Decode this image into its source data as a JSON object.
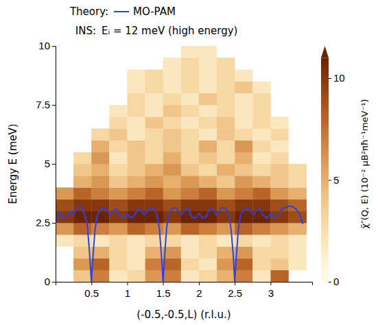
{
  "chart_data": {
    "type": "heatmap",
    "annotations": [
      "Theory:",
      "INS:",
      "Eᵢ = 12 meV (high energy)"
    ],
    "x_label": "(-0.5,-0.5,L) (r.l.u.)",
    "y_label": "Energy E (meV)",
    "xlim": [
      0,
      3.58
    ],
    "xticks": [
      0.5,
      1,
      1.5,
      2,
      2.5,
      3
    ],
    "ylim": [
      0,
      10
    ],
    "yticks": [
      0,
      2.5,
      5,
      7.5,
      10
    ],
    "legend": "top",
    "x_bins": [
      0,
      0.25,
      0.5,
      0.75,
      1,
      1.25,
      1.5,
      1.75,
      2,
      2.25,
      2.5,
      2.75,
      3,
      3.25,
      3.5
    ],
    "y_bins": [
      0,
      0.5,
      1,
      1.5,
      2,
      2.5,
      3,
      3.5,
      4,
      4.5,
      5,
      5.5,
      6,
      6.5,
      7,
      7.5,
      8,
      8.5,
      9,
      9.5,
      10
    ],
    "cells": [
      [
        null,
        4,
        7,
        2,
        3,
        6,
        7,
        2,
        3,
        5,
        7,
        2,
        8,
        null
      ],
      [
        null,
        6,
        8,
        3,
        2,
        7,
        8,
        3,
        2,
        6,
        8,
        3,
        4,
        2
      ],
      [
        null,
        4,
        5,
        3,
        2,
        5,
        6,
        2,
        3,
        5,
        6,
        3,
        3,
        2
      ],
      [
        2,
        3,
        2,
        3,
        2,
        3,
        3,
        2,
        3,
        2,
        3,
        2,
        3,
        2
      ],
      [
        6,
        8,
        7,
        6,
        8,
        7,
        6,
        8,
        7,
        6,
        8,
        7,
        6,
        5
      ],
      [
        10,
        11,
        11,
        10,
        11,
        11,
        10,
        11,
        11,
        10,
        11,
        11,
        10,
        9
      ],
      [
        9,
        10,
        10,
        9,
        10,
        10,
        9,
        10,
        10,
        9,
        10,
        10,
        9,
        8
      ],
      [
        6,
        8,
        7,
        6,
        7,
        8,
        6,
        7,
        8,
        6,
        7,
        8,
        6,
        5
      ],
      [
        null,
        5,
        6,
        4,
        5,
        6,
        5,
        6,
        5,
        4,
        6,
        5,
        4,
        3
      ],
      [
        null,
        4,
        5,
        3,
        4,
        5,
        6,
        4,
        3,
        5,
        4,
        3,
        4,
        3
      ],
      [
        null,
        3,
        6,
        2,
        4,
        3,
        5,
        3,
        4,
        3,
        5,
        2,
        3,
        null
      ],
      [
        null,
        null,
        5,
        3,
        4,
        3,
        4,
        3,
        5,
        3,
        6,
        3,
        2,
        null
      ],
      [
        null,
        null,
        3,
        4,
        2,
        3,
        4,
        3,
        2,
        4,
        3,
        2,
        3,
        null
      ],
      [
        null,
        null,
        null,
        3,
        2,
        4,
        3,
        2,
        3,
        4,
        2,
        3,
        2,
        null
      ],
      [
        null,
        null,
        null,
        2,
        3,
        2,
        4,
        3,
        2,
        3,
        2,
        3,
        null,
        null
      ],
      [
        null,
        null,
        null,
        null,
        3,
        2,
        3,
        2,
        4,
        3,
        2,
        3,
        null,
        null
      ],
      [
        null,
        null,
        null,
        null,
        2,
        3,
        2,
        3,
        2,
        3,
        4,
        2,
        null,
        null
      ],
      [
        null,
        null,
        null,
        null,
        2,
        3,
        2,
        3,
        2,
        3,
        2,
        null,
        null,
        null
      ],
      [
        null,
        null,
        null,
        null,
        null,
        null,
        2,
        3,
        2,
        3,
        null,
        null,
        null,
        null
      ],
      [
        null,
        null,
        null,
        null,
        null,
        null,
        null,
        2,
        2,
        null,
        null,
        null,
        null,
        null
      ]
    ],
    "colorbar": {
      "range": [
        0,
        11
      ],
      "ticks": [
        0,
        5,
        10
      ],
      "label": "χ̃″(Q, E) (10⁻² μB²πħ⁻¹meV⁻¹)"
    },
    "x": [
      0,
      0.03,
      0.06,
      0.1,
      0.15,
      0.2,
      0.25,
      0.3,
      0.35,
      0.4,
      0.44,
      0.47,
      0.5,
      0.52,
      0.55,
      0.58,
      0.62,
      0.68,
      0.72,
      0.76,
      0.8,
      0.85,
      0.9,
      0.95,
      1.0,
      1.05,
      1.1,
      1.15,
      1.2,
      1.24,
      1.28,
      1.32,
      1.38,
      1.42,
      1.45,
      1.48,
      1.5,
      1.52,
      1.55,
      1.58,
      1.62,
      1.68,
      1.72,
      1.76,
      1.8,
      1.85,
      1.9,
      1.95,
      2.0,
      2.05,
      2.1,
      2.15,
      2.2,
      2.24,
      2.28,
      2.32,
      2.38,
      2.42,
      2.45,
      2.48,
      2.5,
      2.52,
      2.55,
      2.58,
      2.62,
      2.68,
      2.72,
      2.76,
      2.8,
      2.85,
      2.9,
      2.95,
      3.0,
      3.05,
      3.1,
      3.15,
      3.2,
      3.25,
      3.3,
      3.35,
      3.4,
      3.43,
      3.45
    ],
    "series": [
      {
        "name": "MO-PAM",
        "type": "line",
        "color": "#2b44e0",
        "values": [
          2.55,
          2.8,
          2.95,
          2.7,
          2.75,
          3.0,
          2.85,
          3.15,
          3.2,
          2.9,
          2.5,
          1.4,
          0,
          1.0,
          2.2,
          2.8,
          3.05,
          3.15,
          3.0,
          2.85,
          3.0,
          3.1,
          2.8,
          2.7,
          2.9,
          2.7,
          2.8,
          3.1,
          3.0,
          2.85,
          3.0,
          3.15,
          3.05,
          2.8,
          2.2,
          1.0,
          0,
          1.0,
          2.3,
          2.85,
          3.1,
          3.15,
          2.95,
          2.85,
          3.05,
          3.1,
          2.75,
          2.7,
          2.9,
          2.7,
          2.75,
          3.1,
          3.05,
          2.85,
          3.0,
          3.15,
          3.1,
          2.8,
          2.2,
          1.1,
          0,
          1.0,
          2.2,
          2.8,
          3.05,
          3.15,
          3.0,
          2.85,
          3.0,
          3.1,
          2.8,
          2.7,
          2.9,
          2.75,
          2.8,
          3.05,
          3.15,
          3.2,
          3.2,
          3.1,
          2.9,
          2.65,
          2.45
        ]
      }
    ]
  }
}
